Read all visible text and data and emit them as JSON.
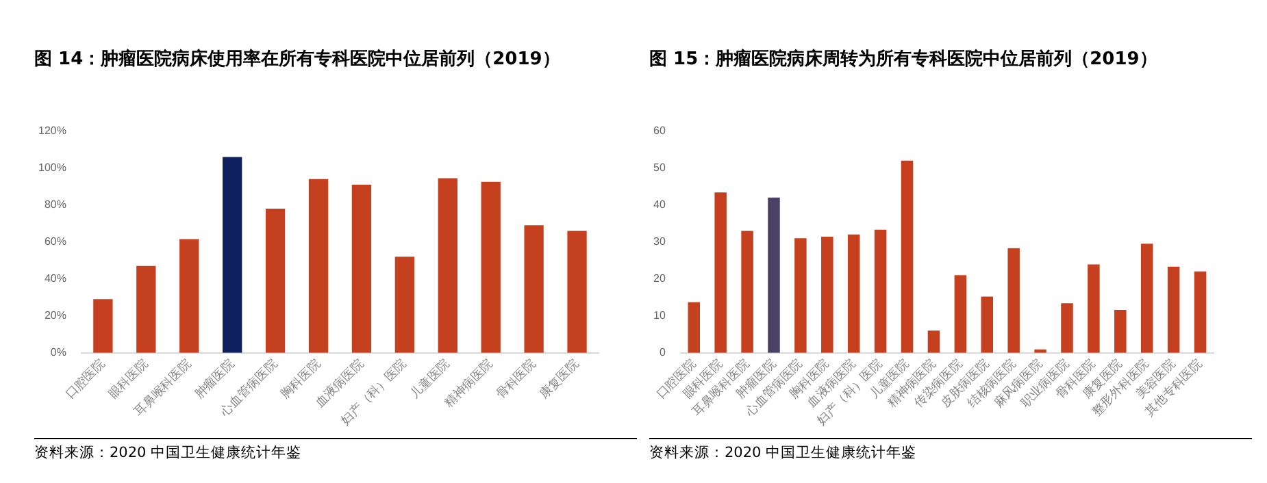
{
  "chart_data": [
    {
      "type": "bar",
      "title": "图 14：肿瘤医院病床使用率在所有专科医院中位居前列（2019）",
      "categories": [
        "口腔医院",
        "眼科医院",
        "耳鼻喉科医院",
        "肿瘤医院",
        "心血管病医院",
        "胸科医院",
        "血液病医院",
        "妇产（科）医院",
        "儿童医院",
        "精神病医院",
        "骨科医院",
        "康复医院"
      ],
      "values": [
        29,
        47,
        61.5,
        106,
        78,
        94,
        91,
        52,
        94.5,
        92.5,
        69,
        66
      ],
      "colors": [
        "#c5401f",
        "#c5401f",
        "#c5401f",
        "#0d1f5c",
        "#c5401f",
        "#c5401f",
        "#c5401f",
        "#c5401f",
        "#c5401f",
        "#c5401f",
        "#c5401f",
        "#c5401f"
      ],
      "ylim": [
        0,
        120
      ],
      "yticks": [
        {
          "value": 0,
          "label": "0%"
        },
        {
          "value": 20,
          "label": "20%"
        },
        {
          "value": 40,
          "label": "40%"
        },
        {
          "value": 60,
          "label": "60%"
        },
        {
          "value": 80,
          "label": "80%"
        },
        {
          "value": 100,
          "label": "100%"
        },
        {
          "value": 120,
          "label": "120%"
        }
      ],
      "annotations": [
        "资料来源：2020 中国卫生健康统计年鉴"
      ]
    },
    {
      "type": "bar",
      "title": "图 15：肿瘤医院病床周转为所有专科医院中位居前列（2019）",
      "categories": [
        "口腔医院",
        "眼科医院",
        "耳鼻喉科医院",
        "肿瘤医院",
        "心血管病医院",
        "胸科医院",
        "血液病医院",
        "妇产（科）医院",
        "儿童医院",
        "精神病医院",
        "传染病医院",
        "皮肤病医院",
        "结核病医院",
        "麻风病医院",
        "职业病医院",
        "骨科医院",
        "康复医院",
        "整形外科医院",
        "美容医院",
        "其他专科医院"
      ],
      "values": [
        13.7,
        43.4,
        33,
        42,
        31,
        31.4,
        32,
        33.3,
        52,
        6,
        21,
        15.2,
        28.3,
        0.9,
        13.4,
        23.9,
        11.6,
        29.5,
        23.3,
        22
      ],
      "colors": [
        "#c5401f",
        "#c5401f",
        "#c5401f",
        "#4a4266",
        "#c5401f",
        "#c5401f",
        "#c5401f",
        "#c5401f",
        "#c5401f",
        "#c5401f",
        "#c5401f",
        "#c5401f",
        "#c5401f",
        "#c5401f",
        "#c5401f",
        "#c5401f",
        "#c5401f",
        "#c5401f",
        "#c5401f",
        "#c5401f"
      ],
      "ylim": [
        0,
        60
      ],
      "yticks": [
        0,
        10,
        20,
        30,
        40,
        50,
        60
      ],
      "annotations": [
        "资料来源：2020 中国卫生健康统计年鉴"
      ]
    }
  ]
}
